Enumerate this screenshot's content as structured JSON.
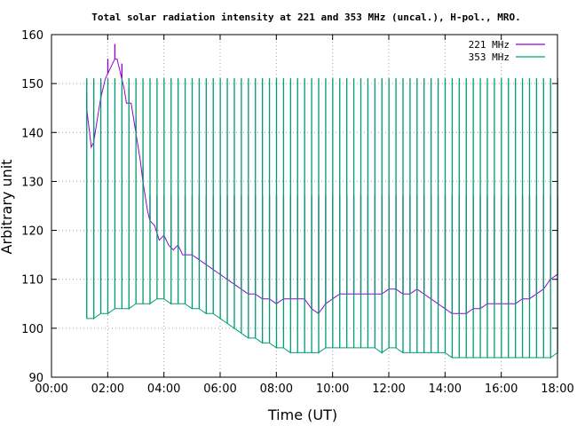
{
  "chart_data": {
    "type": "line",
    "title": "Total solar radiation intensity at 221 and 353 MHz (uncal.), H-pol., MRO.",
    "xlabel": "Time (UT)",
    "ylabel": "Arbitrary unit",
    "xlim": [
      "00:00",
      "18:00"
    ],
    "ylim": [
      90,
      160
    ],
    "xticks": [
      "00:00",
      "02:00",
      "04:00",
      "06:00",
      "08:00",
      "10:00",
      "12:00",
      "14:00",
      "16:00",
      "18:00"
    ],
    "yticks": [
      "90",
      "100",
      "110",
      "120",
      "130",
      "140",
      "150",
      "160"
    ],
    "grid": true,
    "legend_position": "top-right",
    "series": [
      {
        "name": "221 MHz",
        "color": "#9400d3",
        "x": [
          "01:15",
          "01:20",
          "01:25",
          "01:30",
          "01:35",
          "01:40",
          "01:45",
          "01:50",
          "01:55",
          "02:00",
          "02:05",
          "02:10",
          "02:15",
          "02:20",
          "02:25",
          "02:30",
          "02:35",
          "02:40",
          "02:45",
          "02:50",
          "02:55",
          "03:00",
          "03:05",
          "03:10",
          "03:15",
          "03:20",
          "03:25",
          "03:30",
          "03:40",
          "03:50",
          "04:00",
          "04:10",
          "04:20",
          "04:30",
          "04:40",
          "04:50",
          "05:00",
          "05:15",
          "05:30",
          "05:45",
          "06:00",
          "06:15",
          "06:30",
          "06:45",
          "07:00",
          "07:15",
          "07:30",
          "07:45",
          "08:00",
          "08:15",
          "08:30",
          "08:45",
          "09:00",
          "09:15",
          "09:30",
          "09:45",
          "10:00",
          "10:15",
          "10:30",
          "10:45",
          "11:00",
          "11:15",
          "11:30",
          "11:45",
          "12:00",
          "12:15",
          "12:30",
          "12:45",
          "13:00",
          "13:15",
          "13:30",
          "13:45",
          "14:00",
          "14:15",
          "14:30",
          "14:45",
          "15:00",
          "15:15",
          "15:30",
          "15:45",
          "16:00",
          "16:15",
          "16:30",
          "16:45",
          "17:00",
          "17:15",
          "17:30",
          "17:45",
          "18:00"
        ],
        "values": [
          145,
          141,
          137,
          138,
          141,
          144,
          147,
          149,
          151,
          152,
          153,
          154,
          155,
          155,
          153,
          151,
          149,
          146,
          146,
          146,
          143,
          140,
          137,
          134,
          130,
          127,
          124,
          122,
          121,
          118,
          119,
          117,
          116,
          117,
          115,
          115,
          115,
          114,
          113,
          112,
          111,
          110,
          109,
          108,
          107,
          107,
          106,
          106,
          105,
          106,
          106,
          106,
          106,
          104,
          103,
          105,
          106,
          107,
          107,
          107,
          107,
          107,
          107,
          107,
          108,
          108,
          107,
          107,
          108,
          107,
          106,
          105,
          104,
          103,
          103,
          103,
          104,
          104,
          105,
          105,
          105,
          105,
          105,
          106,
          106,
          107,
          108,
          110,
          111
        ]
      },
      {
        "name": "353 MHz",
        "color": "#009e73",
        "x": [
          "01:15",
          "01:30",
          "01:45",
          "02:00",
          "02:15",
          "02:30",
          "02:45",
          "03:00",
          "03:15",
          "03:30",
          "03:45",
          "04:00",
          "04:15",
          "04:30",
          "04:45",
          "05:00",
          "05:15",
          "05:30",
          "05:45",
          "06:00",
          "06:15",
          "06:30",
          "06:45",
          "07:00",
          "07:15",
          "07:30",
          "07:45",
          "08:00",
          "08:15",
          "08:30",
          "08:45",
          "09:00",
          "09:15",
          "09:30",
          "09:45",
          "10:00",
          "10:15",
          "10:30",
          "10:45",
          "11:00",
          "11:15",
          "11:30",
          "11:45",
          "12:00",
          "12:15",
          "12:30",
          "12:45",
          "13:00",
          "13:15",
          "13:30",
          "13:45",
          "14:00",
          "14:15",
          "14:30",
          "14:45",
          "15:00",
          "15:15",
          "15:30",
          "15:45",
          "16:00",
          "16:15",
          "16:30",
          "16:45",
          "17:00",
          "17:15",
          "17:30",
          "17:45",
          "18:00"
        ],
        "values": [
          102,
          102,
          103,
          103,
          104,
          104,
          104,
          105,
          105,
          105,
          106,
          106,
          105,
          105,
          105,
          104,
          104,
          103,
          103,
          102,
          101,
          100,
          99,
          98,
          98,
          97,
          97,
          96,
          96,
          95,
          95,
          95,
          95,
          95,
          96,
          96,
          96,
          96,
          96,
          96,
          96,
          96,
          95,
          96,
          96,
          95,
          95,
          95,
          95,
          95,
          95,
          95,
          94,
          94,
          94,
          94,
          94,
          94,
          94,
          94,
          94,
          94,
          94,
          94,
          94,
          94,
          94,
          95
        ]
      }
    ],
    "spike_interval_min": 15,
    "spike_start": "01:15",
    "spike_peak_353": 151,
    "spike_peak_221": 127
  }
}
